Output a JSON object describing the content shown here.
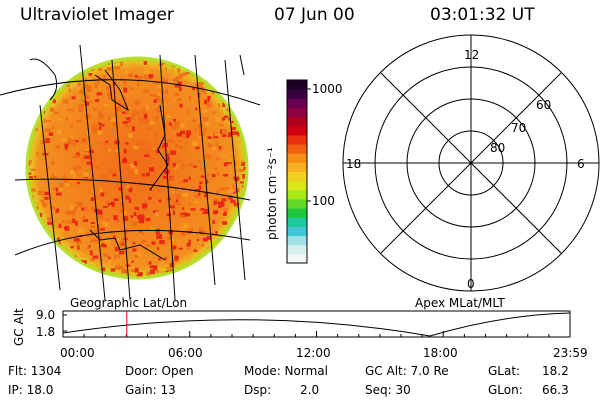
{
  "header": {
    "title": "Ultraviolet Imager",
    "date": "07 Jun 00",
    "time": "03:01:32 UT"
  },
  "colorbar": {
    "unit_label": "photon cm⁻²s⁻¹",
    "tick_labels": [
      "1000",
      "100"
    ],
    "colors_top_to_bottom": [
      "#1a0025",
      "#3b0040",
      "#6a0050",
      "#900040",
      "#b00020",
      "#d00010",
      "#e83010",
      "#f06010",
      "#f89018",
      "#f8b020",
      "#f0d020",
      "#d8e818",
      "#a8e818",
      "#60d828",
      "#20c840",
      "#20c8a0",
      "#40c8d8",
      "#a0e0e8",
      "#d8f0f0",
      "#f0f8f8"
    ]
  },
  "left_panel": {
    "caption": "Geographic Lat/Lon",
    "image_colors": {
      "base": "#f06a18",
      "hot": "#e81a14",
      "warm": "#f8a020",
      "edge": "#a8d820"
    }
  },
  "right_panel": {
    "caption": "Apex MLat/MLT",
    "mlt_labels": {
      "top": "12",
      "left": "18",
      "right": "6",
      "bottom": "0"
    },
    "mlat_labels": [
      "60",
      "70",
      "80"
    ]
  },
  "altitude_plot": {
    "ylabel": "GC Alt",
    "y_ticks": [
      "9.0",
      "1.8"
    ],
    "x_ticks": [
      "00:00",
      "06:00",
      "12:00",
      "18:00",
      "23:59"
    ],
    "current_time_marker_hours": 3.02,
    "marker_color": "#e00000"
  },
  "info": {
    "row1": {
      "flt": "Flt: 1304",
      "door": "Door: Open",
      "mode": "Mode: Normal",
      "gcalt": "GC Alt: 7.0 Re",
      "glat": "GLat:",
      "glat_val": "18.2"
    },
    "row2": {
      "ip": "IP: 18.0",
      "gain": "Gain: 13",
      "dsp": "Dsp:",
      "dsp_val": "2.0",
      "seq": "Seq: 30",
      "glon": "GLon:",
      "glon_val": "66.3"
    }
  }
}
